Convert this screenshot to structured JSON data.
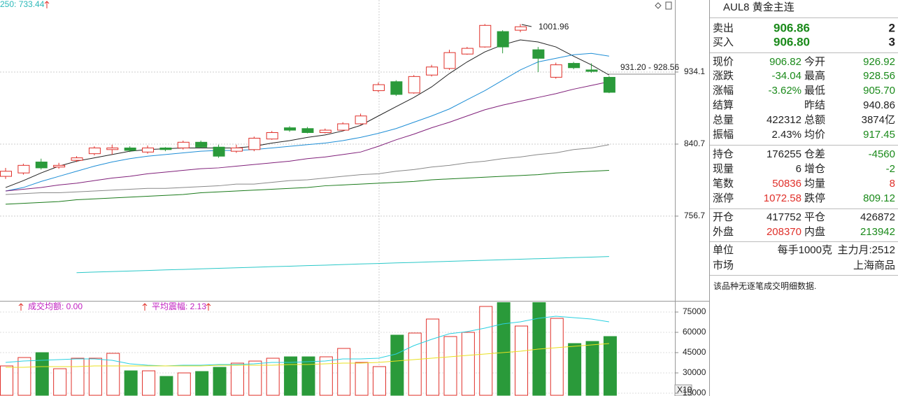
{
  "chart_data": {
    "type": "candlestick",
    "ma_label": "250: 733.44",
    "ylim": [
      672,
      1037.8
    ],
    "log": true,
    "yticks": [
      934.1,
      840.7,
      756.7
    ],
    "annotations": [
      "1001.96",
      "931.20 - 928.56"
    ],
    "up_color": "#e0302a",
    "down_color": "#2a9a3a",
    "open": [
      802,
      806,
      819,
      813,
      821,
      829,
      834,
      836,
      831,
      836,
      836,
      843,
      837,
      832,
      834,
      847,
      861,
      860,
      855,
      858,
      866,
      909,
      921,
      906,
      930,
      939,
      959,
      969,
      991,
      993,
      965,
      927,
      946,
      937,
      926.92
    ],
    "high": [
      812,
      817,
      823,
      818,
      826,
      838,
      840,
      838,
      839,
      837,
      845,
      845,
      840,
      840,
      850,
      857,
      863,
      862,
      860,
      868,
      879,
      920,
      923,
      930,
      944,
      965,
      969,
      1002,
      993,
      1001.96,
      969,
      947,
      948,
      946,
      928.56
    ],
    "low": [
      799,
      804,
      810,
      811,
      819,
      827,
      828,
      831,
      829,
      832,
      834,
      836,
      824,
      830,
      832,
      846,
      856,
      854,
      854,
      857,
      865,
      907,
      902,
      905,
      928,
      937,
      958,
      968,
      960,
      990,
      934,
      925,
      938,
      933,
      905.7
    ],
    "close": [
      808,
      815,
      812,
      815,
      824,
      836,
      836,
      833,
      836,
      834,
      843,
      837,
      826,
      836,
      848,
      855,
      858,
      855,
      858,
      866,
      876,
      917,
      904,
      928,
      941,
      961,
      967,
      1000,
      969,
      998,
      953,
      944,
      940,
      935,
      906.82
    ],
    "lines": [
      {
        "color": "#222222",
        "values": [
          789,
          797,
          806,
          814,
          820,
          824,
          828,
          832,
          834,
          835,
          836,
          836,
          836,
          836,
          838,
          842,
          845,
          849,
          852,
          857,
          864,
          876,
          888,
          900,
          914,
          932,
          948,
          962,
          972,
          979,
          976,
          969,
          956,
          944,
          930
        ]
      },
      {
        "color": "#1e8ed6",
        "values": [
          785,
          789,
          796,
          802,
          808,
          814,
          819,
          823,
          826,
          828,
          830,
          832,
          833,
          833,
          834,
          836,
          838,
          840,
          842,
          845,
          849,
          854,
          860,
          868,
          876,
          885,
          897,
          909,
          923,
          937,
          948,
          953,
          958,
          960,
          956
        ]
      },
      {
        "color": "#80207a",
        "values": [
          785,
          787,
          789,
          792,
          794,
          797,
          800,
          802,
          805,
          807,
          809,
          811,
          812,
          814,
          816,
          818,
          820,
          823,
          825,
          828,
          831,
          838,
          846,
          853,
          861,
          868,
          876,
          884,
          890,
          895,
          900,
          905,
          911,
          916,
          921
        ]
      },
      {
        "color": "#888888",
        "values": [
          781,
          782,
          783,
          783,
          784,
          785,
          786,
          787,
          788,
          788,
          789,
          790,
          791,
          793,
          793,
          795,
          797,
          798,
          800,
          802,
          804,
          805,
          808,
          810,
          813,
          815,
          818,
          820,
          823,
          825,
          828,
          830,
          834,
          836,
          840
        ]
      },
      {
        "color": "#1a7a1a",
        "values": [
          770,
          771,
          772,
          773,
          775,
          776,
          777,
          778,
          779,
          780,
          781,
          783,
          784,
          785,
          786,
          787,
          788,
          789,
          791,
          792,
          793,
          794,
          795,
          796,
          798,
          799,
          800,
          801,
          802,
          803,
          804,
          806,
          807,
          808,
          809
        ]
      },
      {
        "color": "#2ac8c8",
        "values": [
          null,
          null,
          null,
          null,
          696.7,
          697.3,
          697.8,
          698.4,
          698.9,
          699.5,
          700.0,
          700.6,
          701.1,
          701.7,
          702.2,
          702.8,
          703.3,
          703.9,
          704.4,
          705.0,
          705.6,
          706.1,
          706.7,
          707.2,
          707.8,
          708.3,
          708.9,
          709.4,
          710.0,
          710.5,
          711.1,
          711.6,
          712.2,
          712.7,
          713.3
        ]
      }
    ],
    "volume": {
      "labels": [
        "成交均额: 0.00",
        "平均震幅: 2.13"
      ],
      "scale_label": "X10",
      "ylim": [
        13450,
        82760
      ],
      "yticks": [
        75000,
        60000,
        45000,
        30000,
        15000
      ],
      "values": [
        35170,
        41380,
        45000,
        33100,
        40860,
        40860,
        44480,
        31550,
        31550,
        27420,
        30000,
        31040,
        34140,
        37240,
        38760,
        40860,
        41900,
        41900,
        41900,
        48100,
        37760,
        34660,
        57930,
        59480,
        69830,
        56900,
        60000,
        79140,
        82000,
        64660,
        82000,
        70350,
        51730,
        53280,
        56900
      ],
      "lines": [
        {
          "color": "#2ad0e0",
          "values": [
            37760,
            38800,
            39310,
            39830,
            40350,
            40350,
            39310,
            36730,
            35690,
            35170,
            35690,
            35690,
            36210,
            36210,
            36730,
            37760,
            37760,
            38280,
            38800,
            40350,
            40350,
            40860,
            43970,
            50170,
            54830,
            58970,
            60520,
            63100,
            66210,
            67760,
            70350,
            71900,
            70860,
            69830,
            67760
          ]
        },
        {
          "color": "#e8e020",
          "values": [
            34140,
            34140,
            34660,
            34660,
            34660,
            35170,
            35170,
            35170,
            35170,
            35170,
            35170,
            35170,
            35690,
            35690,
            35690,
            35690,
            36210,
            36210,
            36730,
            37240,
            37240,
            37760,
            38800,
            39830,
            40860,
            41900,
            42930,
            43970,
            45000,
            46040,
            47590,
            48620,
            49660,
            50690,
            51730
          ]
        }
      ]
    }
  },
  "quote_panel": {
    "title": "AUL8 黄金主连",
    "sell": {
      "label": "卖出",
      "price": "906.86",
      "qty": "2"
    },
    "buy": {
      "label": "买入",
      "price": "906.80",
      "qty": "3"
    },
    "price_color": "#1a8a1a",
    "rows": [
      {
        "l1": "现价",
        "v1": "906.82",
        "c1": "#1a8a1a",
        "l2": "今开",
        "v2": "926.92",
        "c2": "#1a8a1a"
      },
      {
        "l1": "涨跌",
        "v1": "-34.04",
        "c1": "#1a8a1a",
        "l2": "最高",
        "v2": "928.56",
        "c2": "#1a8a1a"
      },
      {
        "l1": "涨幅",
        "v1": "-3.62%",
        "c1": "#1a8a1a",
        "l2": "最低",
        "v2": "905.70",
        "c2": "#1a8a1a"
      },
      {
        "l1": "结算",
        "l2": "昨结",
        "v2": "940.86",
        "c2": "#222222"
      },
      {
        "l1": "总量",
        "v1": "422312",
        "c1": "#222222",
        "l2": "总额",
        "v2": "3874亿",
        "c2": "#222222"
      },
      {
        "l1": "振幅",
        "v1": "2.43%",
        "c1": "#222222",
        "l2": "均价",
        "v2": "917.45",
        "c2": "#1a8a1a"
      },
      {
        "l1": "持仓",
        "v1": "176255",
        "c1": "#222222",
        "l2": "仓差",
        "v2": "-4560",
        "c2": "#1a8a1a"
      },
      {
        "l1": "现量",
        "v1": "6",
        "c1": "#222222",
        "l2": "增仓",
        "v2": "-2",
        "c2": "#1a8a1a"
      },
      {
        "l1": "笔数",
        "v1": "50836",
        "c1": "#e0302a",
        "l2": "均量",
        "v2": "8",
        "c2": "#e0302a"
      },
      {
        "l1": "涨停",
        "v1": "1072.58",
        "c1": "#e0302a",
        "l2": "跌停",
        "v2": "809.12",
        "c2": "#1a8a1a"
      },
      {
        "l1": "开仓",
        "v1": "417752",
        "c1": "#222222",
        "l2": "平仓",
        "v2": "426872",
        "c2": "#222222"
      },
      {
        "l1": "外盘",
        "v1": "208370",
        "c1": "#e0302a",
        "l2": "内盘",
        "v2": "213942",
        "c2": "#1a8a1a"
      }
    ],
    "unit": {
      "label": "单位",
      "value": "每手1000克",
      "extra": "主力月:2512"
    },
    "market": {
      "label": "市场",
      "value": "上海商品"
    },
    "message": "该品种无逐笔成交明细数据."
  }
}
